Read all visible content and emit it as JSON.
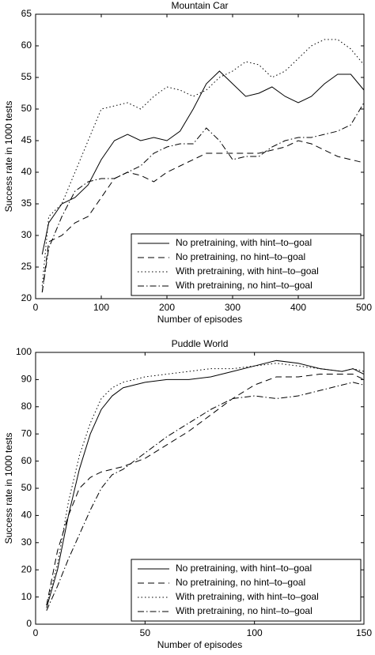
{
  "chart_data": [
    {
      "type": "line",
      "title": "Mountain Car",
      "xlabel": "Number of episodes",
      "ylabel": "Success rate in 1000 tests",
      "x": [
        10,
        20,
        40,
        60,
        80,
        100,
        120,
        140,
        160,
        180,
        200,
        220,
        240,
        260,
        280,
        300,
        320,
        340,
        360,
        380,
        400,
        420,
        440,
        460,
        480,
        500
      ],
      "series": [
        {
          "name": "No pretraining, with hint–to–goal",
          "color": "#000000",
          "style": "solid",
          "values": [
            27,
            32,
            35,
            36,
            38,
            42,
            45,
            46,
            45,
            45.5,
            45,
            46.5,
            50,
            54,
            56,
            54,
            52,
            52.5,
            53.5,
            52,
            51,
            52,
            54,
            55.5,
            55.5,
            53
          ]
        },
        {
          "name": "No pretraining, no hint–to–goal",
          "color": "#000000",
          "style": "dashed",
          "values": [
            21,
            29,
            30,
            32,
            33,
            36,
            39,
            40,
            39.5,
            38.5,
            40,
            41,
            42,
            43,
            43,
            43,
            43,
            43,
            43.5,
            44,
            45,
            44.5,
            43.5,
            42.5,
            42,
            41.5
          ]
        },
        {
          "name": "With pretraining, with hint–to–goal",
          "color": "#000000",
          "style": "dotted",
          "values": [
            22,
            33,
            35,
            40,
            45,
            50,
            50.5,
            51,
            50,
            52,
            53.5,
            53,
            52,
            53,
            55,
            56,
            57.5,
            57,
            55,
            56,
            58,
            60,
            61,
            61,
            59.5,
            57
          ]
        },
        {
          "name": "With pretraining, no hint–to–goal",
          "color": "#000000",
          "style": "dashdot",
          "values": [
            21,
            28,
            33,
            37,
            38.5,
            39,
            39,
            40,
            41,
            43,
            44,
            44.5,
            44.5,
            47,
            45,
            42,
            42.5,
            42.5,
            44,
            45,
            45.5,
            45.5,
            46,
            46.5,
            47.5,
            51
          ]
        }
      ],
      "xlim": [
        0,
        500
      ],
      "xticks": [
        0,
        100,
        200,
        300,
        400,
        500
      ],
      "ylim": [
        20,
        65
      ],
      "yticks": [
        20,
        25,
        30,
        35,
        40,
        45,
        50,
        55,
        60,
        65
      ],
      "legend": "lower right"
    },
    {
      "type": "line",
      "title": "Puddle World",
      "xlabel": "Number of episodes",
      "ylabel": "Success rate in 1000 tests",
      "x": [
        5,
        10,
        15,
        20,
        25,
        30,
        35,
        40,
        50,
        60,
        70,
        80,
        90,
        100,
        110,
        120,
        130,
        140,
        145,
        150
      ],
      "series": [
        {
          "name": "No pretraining, with hint–to–goal",
          "color": "#000000",
          "style": "solid",
          "values": [
            6,
            20,
            40,
            57,
            70,
            79,
            84,
            87,
            89,
            90,
            90,
            91,
            93,
            95,
            97,
            96,
            94,
            93,
            94,
            92
          ]
        },
        {
          "name": "No pretraining, no hint–to–goal",
          "color": "#000000",
          "style": "dashed",
          "values": [
            7,
            27,
            40,
            50,
            54,
            56,
            57,
            58,
            61,
            66,
            71,
            77,
            83,
            88,
            91,
            91,
            92,
            92,
            92,
            90
          ]
        },
        {
          "name": "With pretraining, with hint–to–goal",
          "color": "#000000",
          "style": "dotted",
          "values": [
            7,
            22,
            45,
            62,
            74,
            83,
            87,
            89,
            91,
            92,
            93,
            94,
            94,
            95,
            96,
            95,
            94,
            93,
            94,
            93
          ]
        },
        {
          "name": "With pretraining, no hint–to–goal",
          "color": "#000000",
          "style": "dashdot",
          "values": [
            5,
            14,
            24,
            33,
            42,
            50,
            55,
            57,
            63,
            69,
            74,
            79,
            83,
            84,
            83,
            84,
            86,
            88,
            89,
            88
          ]
        }
      ],
      "xlim": [
        0,
        150
      ],
      "xticks": [
        0,
        50,
        100,
        150
      ],
      "ylim": [
        0,
        100
      ],
      "yticks": [
        0,
        10,
        20,
        30,
        40,
        50,
        60,
        70,
        80,
        90,
        100
      ],
      "legend": "lower right"
    }
  ]
}
